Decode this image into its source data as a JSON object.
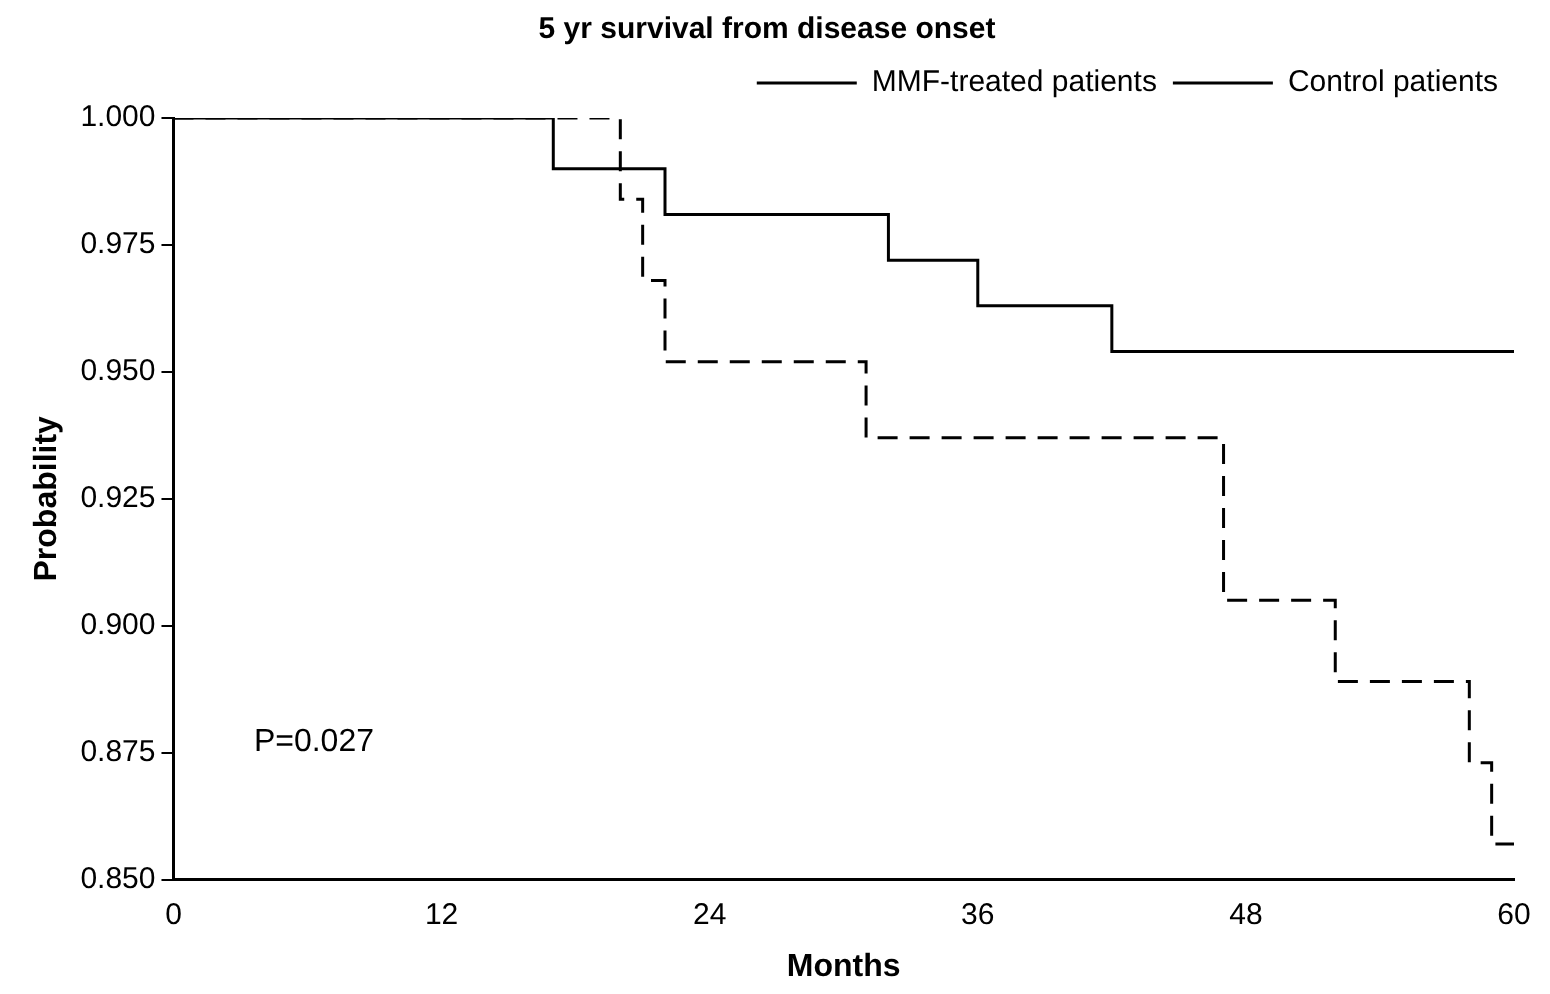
{
  "chart_data": {
    "type": "step",
    "title": "5 yr survival from disease onset",
    "xlabel": "Months",
    "ylabel": "Probability",
    "series": [
      {
        "name": "MMF-treated patients",
        "color": "#000000",
        "line_style": "solid",
        "x": [
          0,
          17,
          22,
          32,
          36,
          42,
          60
        ],
        "values": [
          1.0,
          0.99,
          0.981,
          0.972,
          0.963,
          0.954,
          0.954
        ]
      },
      {
        "name": "Control patients",
        "color": "#000000",
        "line_style": "dashed",
        "x": [
          0,
          20,
          21,
          22,
          31,
          47,
          52,
          58,
          59,
          60
        ],
        "values": [
          1.0,
          0.984,
          0.968,
          0.952,
          0.937,
          0.905,
          0.889,
          0.873,
          0.857,
          0.857
        ]
      }
    ],
    "xlim": [
      0,
      60
    ],
    "xticks": [
      0,
      12,
      24,
      36,
      48,
      60
    ],
    "ylim": [
      0.85,
      1.0
    ],
    "yticks": [
      {
        "value": 0.85,
        "label": "0.850"
      },
      {
        "value": 0.875,
        "label": "0.875"
      },
      {
        "value": 0.9,
        "label": "0.900"
      },
      {
        "value": 0.925,
        "label": "0.925"
      },
      {
        "value": 0.95,
        "label": "0.950"
      },
      {
        "value": 0.975,
        "label": "0.975"
      },
      {
        "value": 1.0,
        "label": "1.000"
      }
    ],
    "annotations": [
      "P=0.027"
    ],
    "grid": false,
    "legend": "top right",
    "marker": "none"
  }
}
